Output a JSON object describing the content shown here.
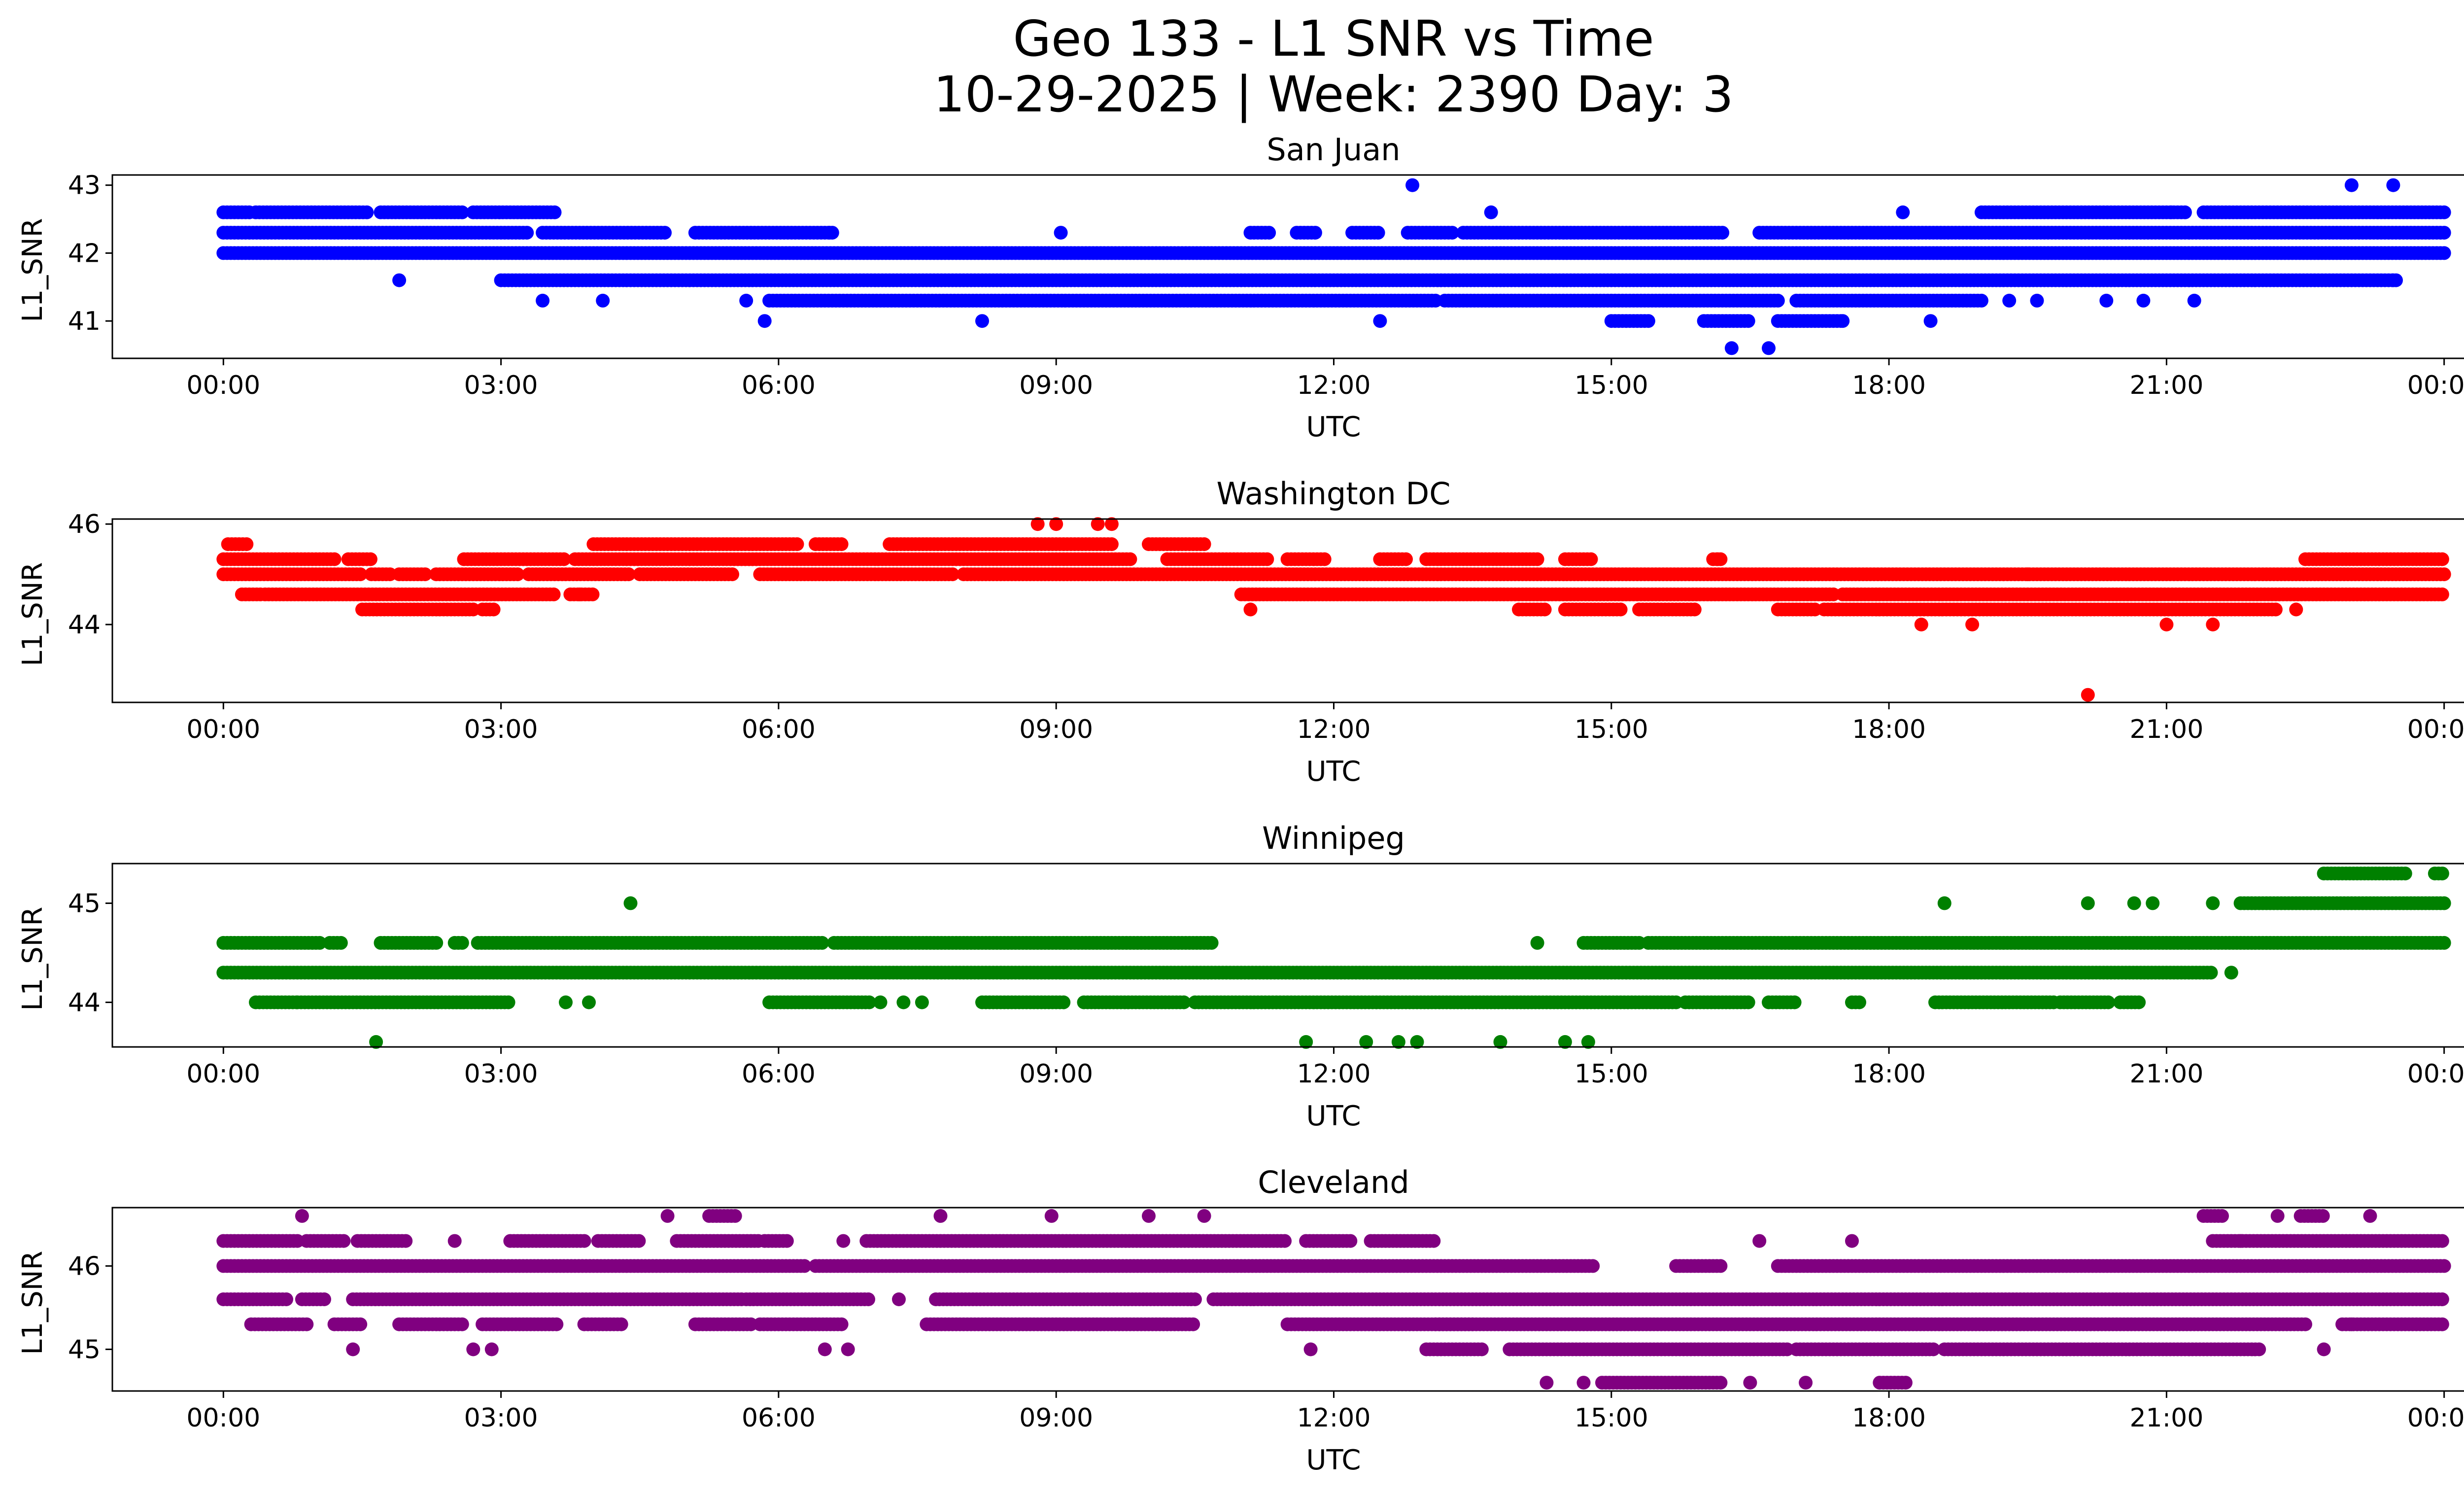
{
  "figure": {
    "title_line1": "Geo 133 - L1 SNR vs Time",
    "title_line2": "10-29-2025 | Week: 2390 Day: 3"
  },
  "chart_data": [
    {
      "type": "scatter",
      "title": "San Juan",
      "xlabel": "UTC",
      "ylabel": "L1_SNR",
      "color": "#0000ff",
      "xlim_hours": [
        -1.2,
        25.2
      ],
      "ylim": [
        40.45,
        43.15
      ],
      "xticks": [
        "00:00",
        "03:00",
        "06:00",
        "09:00",
        "12:00",
        "15:00",
        "18:00",
        "21:00",
        "00:00"
      ],
      "yticks": [
        "41",
        "42",
        "43"
      ],
      "ytick_values": [
        41,
        42,
        43
      ],
      "grid": false,
      "levels": [
        {
          "y": 42.6,
          "ranges": [
            [
              0,
              0.3
            ],
            [
              0.35,
              1.55
            ],
            [
              1.7,
              2.6
            ],
            [
              2.7,
              3.6
            ],
            [
              19,
              21.2
            ],
            [
              21.4,
              24
            ]
          ]
        },
        {
          "y": 42.3,
          "ranges": [
            [
              0,
              3.3
            ],
            [
              3.45,
              4.8
            ],
            [
              5.1,
              6.6
            ],
            [
              11.1,
              11.3
            ],
            [
              11.6,
              11.8
            ],
            [
              12.2,
              12.5
            ],
            [
              12.8,
              13.3
            ],
            [
              13.4,
              16.2
            ],
            [
              16.6,
              24
            ]
          ]
        },
        {
          "y": 42.0,
          "ranges": [
            [
              0,
              24
            ]
          ]
        },
        {
          "y": 41.6,
          "ranges": [
            [
              3.0,
              23.5
            ]
          ]
        },
        {
          "y": 41.3,
          "ranges": [
            [
              5.9,
              13.1
            ],
            [
              13.2,
              16.8
            ],
            [
              17.0,
              19.0
            ]
          ]
        },
        {
          "y": 41.0,
          "ranges": [
            [
              15.0,
              15.4
            ],
            [
              16.0,
              16.5
            ],
            [
              16.8,
              17.5
            ]
          ]
        }
      ],
      "points": [
        {
          "x": 1.9,
          "y": 41.6
        },
        {
          "x": 3.45,
          "y": 41.3
        },
        {
          "x": 4.1,
          "y": 41.3
        },
        {
          "x": 5.65,
          "y": 41.3
        },
        {
          "x": 5.85,
          "y": 41.0
        },
        {
          "x": 6.55,
          "y": 42.3
        },
        {
          "x": 8.2,
          "y": 41.0
        },
        {
          "x": 9.05,
          "y": 42.3
        },
        {
          "x": 12.5,
          "y": 41.0
        },
        {
          "x": 12.85,
          "y": 43.0
        },
        {
          "x": 13.7,
          "y": 42.6
        },
        {
          "x": 16.3,
          "y": 40.6
        },
        {
          "x": 16.7,
          "y": 40.6
        },
        {
          "x": 17.5,
          "y": 41.0
        },
        {
          "x": 18.15,
          "y": 42.6
        },
        {
          "x": 18.45,
          "y": 41.0
        },
        {
          "x": 19.3,
          "y": 41.3
        },
        {
          "x": 19.6,
          "y": 41.3
        },
        {
          "x": 20.35,
          "y": 41.3
        },
        {
          "x": 20.75,
          "y": 41.3
        },
        {
          "x": 21.3,
          "y": 41.3
        },
        {
          "x": 23.0,
          "y": 43.0
        },
        {
          "x": 23.45,
          "y": 43.0
        },
        {
          "x": 23.45,
          "y": 41.6
        },
        {
          "x": 21.05,
          "y": 42.6
        }
      ]
    },
    {
      "type": "scatter",
      "title": "Washington DC",
      "xlabel": "UTC",
      "ylabel": "L1_SNR",
      "color": "#ff0000",
      "xlim_hours": [
        -1.2,
        25.2
      ],
      "ylim": [
        42.45,
        46.1
      ],
      "xticks": [
        "00:00",
        "03:00",
        "06:00",
        "09:00",
        "12:00",
        "15:00",
        "18:00",
        "21:00",
        "00:00"
      ],
      "yticks": [
        "44",
        "46"
      ],
      "ytick_values": [
        44,
        46
      ],
      "grid": false,
      "levels": [
        {
          "y": 45.6,
          "ranges": [
            [
              0.05,
              0.25
            ],
            [
              4.0,
              6.2
            ],
            [
              6.4,
              6.7
            ],
            [
              7.2,
              9.6
            ],
            [
              10.0,
              10.6
            ]
          ]
        },
        {
          "y": 45.3,
          "ranges": [
            [
              0,
              1.2
            ],
            [
              1.35,
              1.6
            ],
            [
              2.6,
              3.7
            ],
            [
              3.8,
              9.8
            ],
            [
              10.2,
              11.3
            ],
            [
              11.5,
              11.9
            ],
            [
              12.5,
              12.8
            ],
            [
              13,
              14.2
            ],
            [
              14.5,
              14.8
            ],
            [
              16.1,
              16.2
            ],
            [
              22.5,
              24
            ]
          ]
        },
        {
          "y": 45.0,
          "ranges": [
            [
              0,
              1.5
            ],
            [
              1.6,
              1.8
            ],
            [
              1.9,
              2.2
            ],
            [
              2.3,
              3.2
            ],
            [
              3.3,
              4.4
            ],
            [
              4.5,
              5.5
            ],
            [
              5.8,
              7.9
            ],
            [
              8.0,
              24
            ]
          ]
        },
        {
          "y": 44.6,
          "ranges": [
            [
              0.2,
              0.4
            ],
            [
              0.45,
              3.6
            ],
            [
              3.75,
              4.0
            ],
            [
              11.0,
              17.4
            ],
            [
              17.5,
              24
            ]
          ]
        },
        {
          "y": 44.3,
          "ranges": [
            [
              1.5,
              2.7
            ],
            [
              2.8,
              2.95
            ],
            [
              14.0,
              14.3
            ],
            [
              14.5,
              15.1
            ],
            [
              15.3,
              15.9
            ],
            [
              16.8,
              17.2
            ],
            [
              17.3,
              22.2
            ]
          ]
        }
      ],
      "points": [
        {
          "x": 3.85,
          "y": 44.6
        },
        {
          "x": 8.8,
          "y": 46.0
        },
        {
          "x": 9.0,
          "y": 46.0
        },
        {
          "x": 9.45,
          "y": 46.0
        },
        {
          "x": 9.6,
          "y": 46.0
        },
        {
          "x": 11.1,
          "y": 44.3
        },
        {
          "x": 16.15,
          "y": 45.3
        },
        {
          "x": 18.35,
          "y": 44.0
        },
        {
          "x": 18.9,
          "y": 44.0
        },
        {
          "x": 19.5,
          "y": 45.0
        },
        {
          "x": 20.15,
          "y": 42.6
        },
        {
          "x": 21.0,
          "y": 44.0
        },
        {
          "x": 21.5,
          "y": 44.0
        },
        {
          "x": 22.4,
          "y": 44.3
        }
      ]
    },
    {
      "type": "scatter",
      "title": "Winnipeg",
      "xlabel": "UTC",
      "ylabel": "L1_SNR",
      "color": "#008000",
      "xlim_hours": [
        -1.2,
        25.2
      ],
      "ylim": [
        43.55,
        45.4
      ],
      "xticks": [
        "00:00",
        "03:00",
        "06:00",
        "09:00",
        "12:00",
        "15:00",
        "18:00",
        "21:00",
        "00:00"
      ],
      "yticks": [
        "44",
        "45"
      ],
      "ytick_values": [
        44,
        45
      ],
      "grid": false,
      "levels": [
        {
          "y": 45.3,
          "ranges": [
            [
              22.7,
              23.6
            ],
            [
              23.9,
              24
            ]
          ]
        },
        {
          "y": 45.0,
          "ranges": [
            [
              21.8,
              24
            ]
          ]
        },
        {
          "y": 44.6,
          "ranges": [
            [
              0,
              1.05
            ],
            [
              1.15,
              1.3
            ],
            [
              1.7,
              2.3
            ],
            [
              2.5,
              2.6
            ],
            [
              2.75,
              6.5
            ],
            [
              6.6,
              10.7
            ],
            [
              14.7,
              15.3
            ],
            [
              15.4,
              24
            ]
          ]
        },
        {
          "y": 44.3,
          "ranges": [
            [
              0,
              21.5
            ]
          ]
        },
        {
          "y": 44.0,
          "ranges": [
            [
              0.35,
              0.8
            ],
            [
              0.8,
              3.1
            ],
            [
              5.9,
              7.0
            ],
            [
              8.2,
              9.1
            ],
            [
              9.3,
              10.4
            ],
            [
              10.5,
              15.7
            ],
            [
              15.8,
              16.5
            ],
            [
              16.7,
              17.0
            ],
            [
              17.6,
              17.7
            ],
            [
              18.5,
              19.8
            ],
            [
              19.85,
              20.4
            ],
            [
              20.5,
              20.7
            ]
          ]
        }
      ],
      "points": [
        {
          "x": 1.65,
          "y": 43.6
        },
        {
          "x": 3.7,
          "y": 44.0
        },
        {
          "x": 3.95,
          "y": 44.0
        },
        {
          "x": 4.4,
          "y": 45.0
        },
        {
          "x": 7.1,
          "y": 44.0
        },
        {
          "x": 7.35,
          "y": 44.0
        },
        {
          "x": 7.55,
          "y": 44.0
        },
        {
          "x": 11.7,
          "y": 43.6
        },
        {
          "x": 12.35,
          "y": 43.6
        },
        {
          "x": 12.7,
          "y": 43.6
        },
        {
          "x": 12.9,
          "y": 43.6
        },
        {
          "x": 13.8,
          "y": 43.6
        },
        {
          "x": 14.2,
          "y": 44.6
        },
        {
          "x": 14.5,
          "y": 43.6
        },
        {
          "x": 14.75,
          "y": 43.6
        },
        {
          "x": 18.6,
          "y": 45.0
        },
        {
          "x": 20.15,
          "y": 45.0
        },
        {
          "x": 20.65,
          "y": 45.0
        },
        {
          "x": 20.85,
          "y": 45.0
        },
        {
          "x": 21.5,
          "y": 45.0
        },
        {
          "x": 21.7,
          "y": 44.3
        }
      ]
    },
    {
      "type": "scatter",
      "title": "Cleveland",
      "xlabel": "UTC",
      "ylabel": "L1_SNR",
      "color": "#800080",
      "xlim_hours": [
        -1.2,
        25.2
      ],
      "ylim": [
        44.5,
        46.7
      ],
      "xticks": [
        "00:00",
        "03:00",
        "06:00",
        "09:00",
        "12:00",
        "15:00",
        "18:00",
        "21:00",
        "00:00"
      ],
      "yticks": [
        "45",
        "46"
      ],
      "ytick_values": [
        45,
        46
      ],
      "grid": false,
      "levels": [
        {
          "y": 46.6,
          "ranges": [
            [
              5.25,
              5.55
            ],
            [
              21.4,
              21.6
            ],
            [
              22.45,
              22.7
            ]
          ]
        },
        {
          "y": 46.3,
          "ranges": [
            [
              0,
              0.8
            ],
            [
              0.9,
              1.3
            ],
            [
              1.45,
              2.0
            ],
            [
              3.1,
              3.9
            ],
            [
              4.05,
              4.5
            ],
            [
              4.9,
              5.8
            ],
            [
              5.85,
              6.1
            ],
            [
              6.95,
              11.5
            ],
            [
              11.7,
              12.2
            ],
            [
              12.4,
              13.1
            ],
            [
              21.5,
              24
            ]
          ]
        },
        {
          "y": 46.0,
          "ranges": [
            [
              0,
              6.3
            ],
            [
              6.4,
              14.8
            ],
            [
              15.7,
              16.2
            ],
            [
              16.8,
              24
            ]
          ]
        },
        {
          "y": 45.6,
          "ranges": [
            [
              0,
              0.7
            ],
            [
              0.85,
              1.1
            ],
            [
              1.4,
              5.6
            ],
            [
              5.65,
              7.0
            ],
            [
              7.7,
              10.5
            ],
            [
              10.7,
              24
            ]
          ]
        },
        {
          "y": 45.3,
          "ranges": [
            [
              0.3,
              0.9
            ],
            [
              1.2,
              1.5
            ],
            [
              1.9,
              2.6
            ],
            [
              2.8,
              3.6
            ],
            [
              3.9,
              4.3
            ],
            [
              5.1,
              5.7
            ],
            [
              5.8,
              6.7
            ],
            [
              7.6,
              10.5
            ],
            [
              11.5,
              13.5
            ],
            [
              13.1,
              22.5
            ],
            [
              22.9,
              24
            ]
          ]
        },
        {
          "y": 45.0,
          "ranges": [
            [
              13.0,
              13.6
            ],
            [
              13.9,
              16.9
            ],
            [
              17.0,
              18.5
            ],
            [
              18.6,
              22.0
            ]
          ]
        },
        {
          "y": 44.6,
          "ranges": [
            [
              14.9,
              16.2
            ],
            [
              17.9,
              18.2
            ]
          ]
        }
      ],
      "points": [
        {
          "x": 0.85,
          "y": 46.6
        },
        {
          "x": 1.4,
          "y": 45.0
        },
        {
          "x": 2.5,
          "y": 46.3
        },
        {
          "x": 2.7,
          "y": 45.0
        },
        {
          "x": 2.9,
          "y": 45.0
        },
        {
          "x": 4.8,
          "y": 46.6
        },
        {
          "x": 6.5,
          "y": 45.0
        },
        {
          "x": 6.75,
          "y": 45.0
        },
        {
          "x": 6.7,
          "y": 46.3
        },
        {
          "x": 7.3,
          "y": 45.6
        },
        {
          "x": 7.75,
          "y": 46.6
        },
        {
          "x": 8.95,
          "y": 46.6
        },
        {
          "x": 10.0,
          "y": 46.6
        },
        {
          "x": 10.6,
          "y": 46.6
        },
        {
          "x": 11.75,
          "y": 45.0
        },
        {
          "x": 14.3,
          "y": 44.6
        },
        {
          "x": 14.7,
          "y": 44.6
        },
        {
          "x": 16.5,
          "y": 44.6
        },
        {
          "x": 16.6,
          "y": 46.3
        },
        {
          "x": 17.1,
          "y": 44.6
        },
        {
          "x": 17.6,
          "y": 46.3
        },
        {
          "x": 21.8,
          "y": 46.3
        },
        {
          "x": 22.2,
          "y": 46.6
        },
        {
          "x": 23.2,
          "y": 46.6
        },
        {
          "x": 22.7,
          "y": 45.0
        },
        {
          "x": 23.0,
          "y": 45.3
        }
      ]
    }
  ]
}
